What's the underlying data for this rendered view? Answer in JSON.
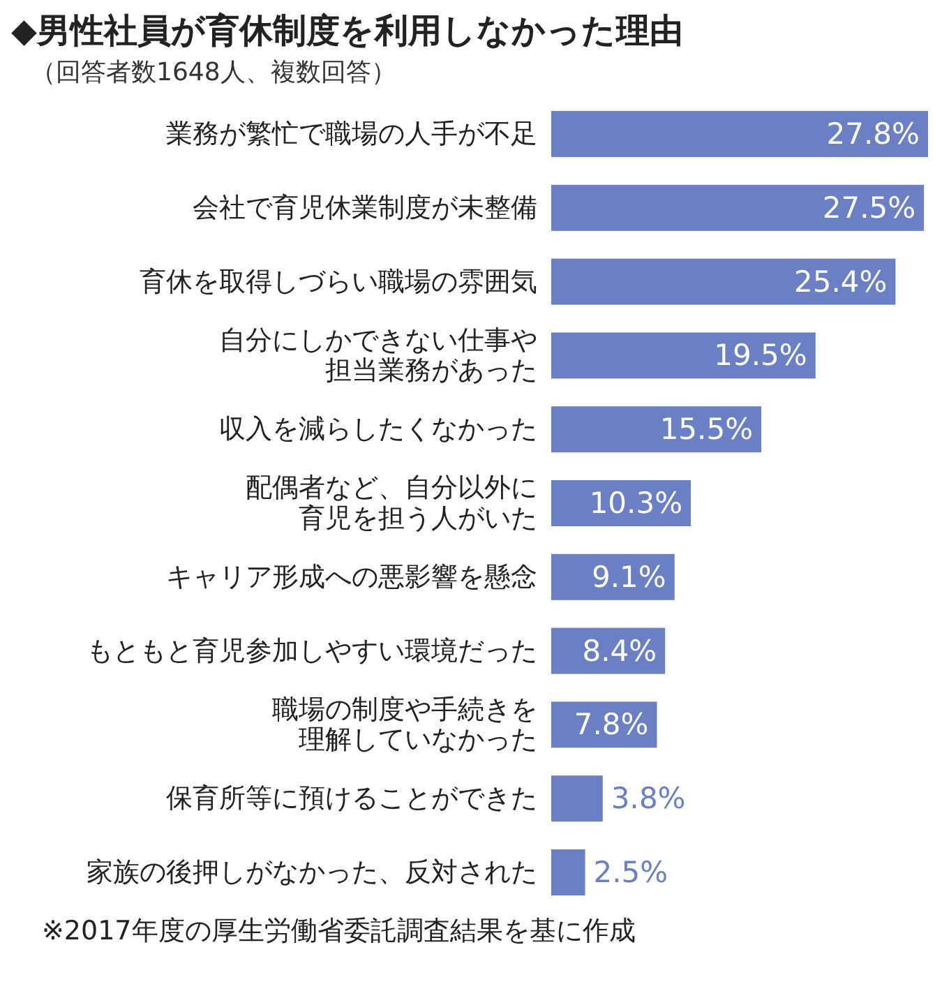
{
  "chart_data": {
    "type": "bar",
    "orientation": "horizontal",
    "title": "◆男性社員が育休制度を利用しなかった理由",
    "subtitle": "（回答者数1648人、複数回答）",
    "categories": [
      "業務が繁忙で職場の人手が不足",
      "会社で育児休業制度が未整備",
      "育休を取得しづらい職場の雰囲気",
      "自分にしかできない仕事や担当業務があった",
      "収入を減らしたくなかった",
      "配偶者など、自分以外に育児を担う人がいた",
      "キャリア形成への悪影響を懸念",
      "もともと育児参加しやすい環境だった",
      "職場の制度や手続きを理解していなかった",
      "保育所等に預けることができた",
      "家族の後押しがなかった、反対された"
    ],
    "values": [
      27.8,
      27.5,
      25.4,
      19.5,
      15.5,
      10.3,
      9.1,
      8.4,
      7.8,
      3.8,
      2.5
    ],
    "value_labels": [
      "27.8%",
      "27.5%",
      "25.4%",
      "19.5%",
      "15.5%",
      "10.3%",
      "9.1%",
      "8.4%",
      "7.8%",
      "3.8%",
      "2.5%"
    ],
    "color": "#6a7fc4",
    "annotations": [
      "※2017年度の厚生労働省委託調査結果を基に作成"
    ]
  }
}
